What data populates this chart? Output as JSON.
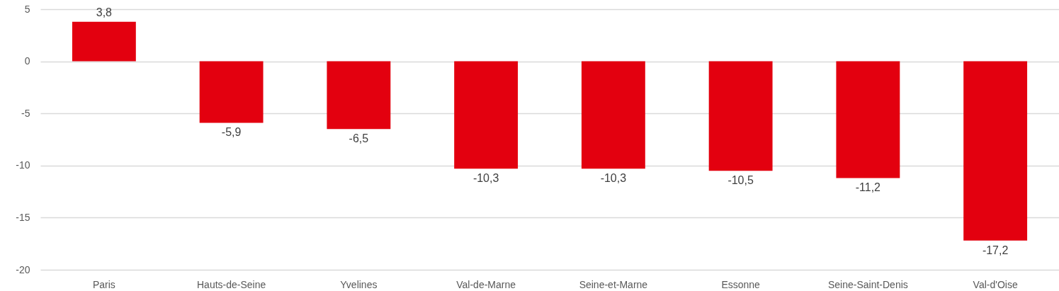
{
  "chart_data": {
    "type": "bar",
    "categories": [
      "Paris",
      "Hauts-de-Seine",
      "Yvelines",
      "Val-de-Marne",
      "Seine-et-Marne",
      "Essonne",
      "Seine-Saint-Denis",
      "Val-d'Oise"
    ],
    "values": [
      3.8,
      -5.9,
      -6.5,
      -10.3,
      -10.3,
      -10.5,
      -11.2,
      -17.2
    ],
    "value_labels": [
      "3,8",
      "-5,9",
      "-6,5",
      "-10,3",
      "-10,3",
      "-10,5",
      "-11,2",
      "-17,2"
    ],
    "color": "#e3000f",
    "ylim": [
      -20,
      5
    ],
    "yticks": [
      -20,
      -15,
      -10,
      -5,
      0,
      5
    ],
    "grid": "y"
  }
}
